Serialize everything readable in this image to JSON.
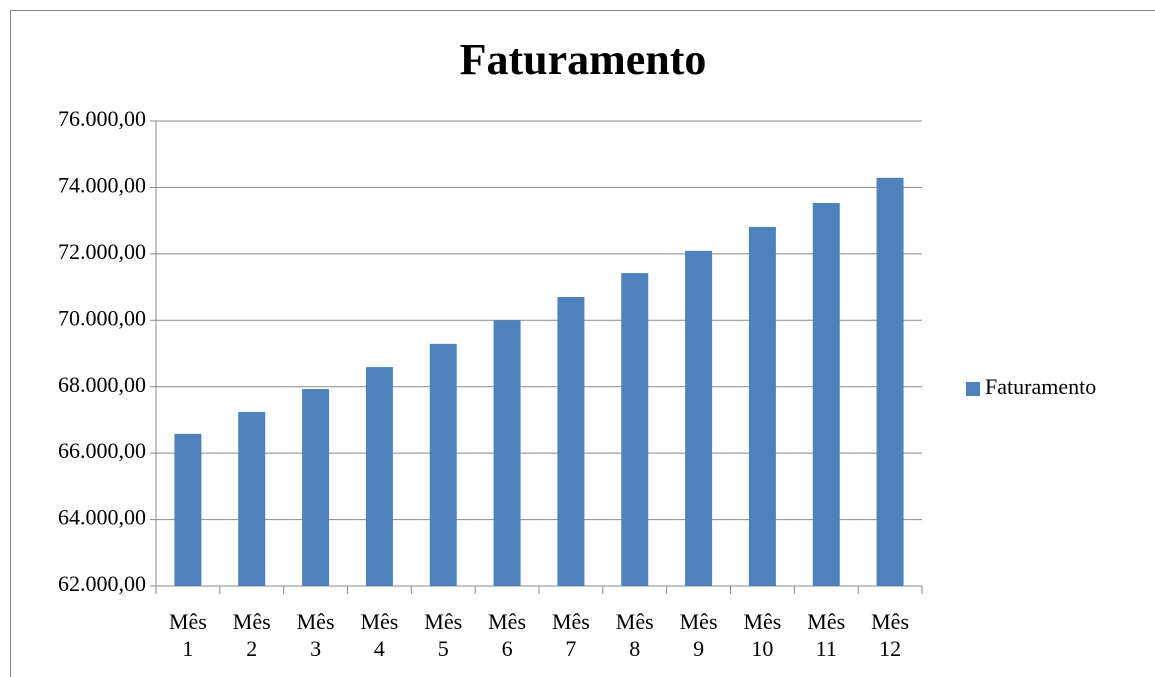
{
  "chart_data": {
    "type": "bar",
    "title": "Faturamento",
    "categories": [
      "Mês 1",
      "Mês 2",
      "Mês 3",
      "Mês 4",
      "Mês 5",
      "Mês 6",
      "Mês 7",
      "Mês 8",
      "Mês 9",
      "Mês 10",
      "Mês 11",
      "Mês 12"
    ],
    "series": [
      {
        "name": "Faturamento",
        "color": "#4f81bd",
        "values": [
          66580,
          67240,
          67930,
          68590,
          69290,
          70000,
          70700,
          71420,
          72090,
          72810,
          73530,
          74290
        ]
      }
    ],
    "ylim": [
      62000,
      76000
    ],
    "yticks": [
      {
        "value": 62000,
        "label": "62.000,00"
      },
      {
        "value": 64000,
        "label": "64.000,00"
      },
      {
        "value": 66000,
        "label": "66.000,00"
      },
      {
        "value": 68000,
        "label": "68.000,00"
      },
      {
        "value": 70000,
        "label": "70.000,00"
      },
      {
        "value": 72000,
        "label": "72.000,00"
      },
      {
        "value": 74000,
        "label": "74.000,00"
      },
      {
        "value": 76000,
        "label": "76.000,00"
      }
    ],
    "grid": true,
    "legend": "right"
  }
}
